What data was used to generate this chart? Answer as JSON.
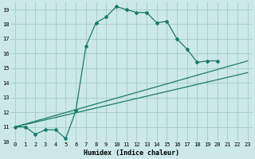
{
  "xlabel": "Humidex (Indice chaleur)",
  "xlim": [
    -0.5,
    23.5
  ],
  "ylim": [
    10,
    19.5
  ],
  "xticks": [
    0,
    1,
    2,
    3,
    4,
    5,
    6,
    7,
    8,
    9,
    10,
    11,
    12,
    13,
    14,
    15,
    16,
    17,
    18,
    19,
    20,
    21,
    22,
    23
  ],
  "yticks": [
    10,
    11,
    12,
    13,
    14,
    15,
    16,
    17,
    18,
    19
  ],
  "background_color": "#cce8e8",
  "grid_color": "#aacfcf",
  "line_color": "#1a7a6e",
  "curve1_x": [
    0,
    1,
    2,
    3,
    4,
    5,
    6,
    7,
    8,
    9,
    10,
    11,
    12,
    13,
    14,
    15,
    16,
    17,
    18,
    19,
    20
  ],
  "curve1_y": [
    11,
    11,
    10.5,
    10.8,
    10.8,
    10.2,
    12.1,
    16.5,
    18.1,
    18.5,
    19.2,
    19.0,
    18.8,
    18.8,
    18.1,
    18.2,
    17.0,
    16.3,
    15.4,
    15.5,
    15.5
  ],
  "line1_x": [
    0,
    23
  ],
  "line1_y": [
    11,
    14.7
  ],
  "line2_x": [
    0,
    23
  ],
  "line2_y": [
    11,
    15.5
  ],
  "tick_fontsize": 5,
  "xlabel_fontsize": 6
}
